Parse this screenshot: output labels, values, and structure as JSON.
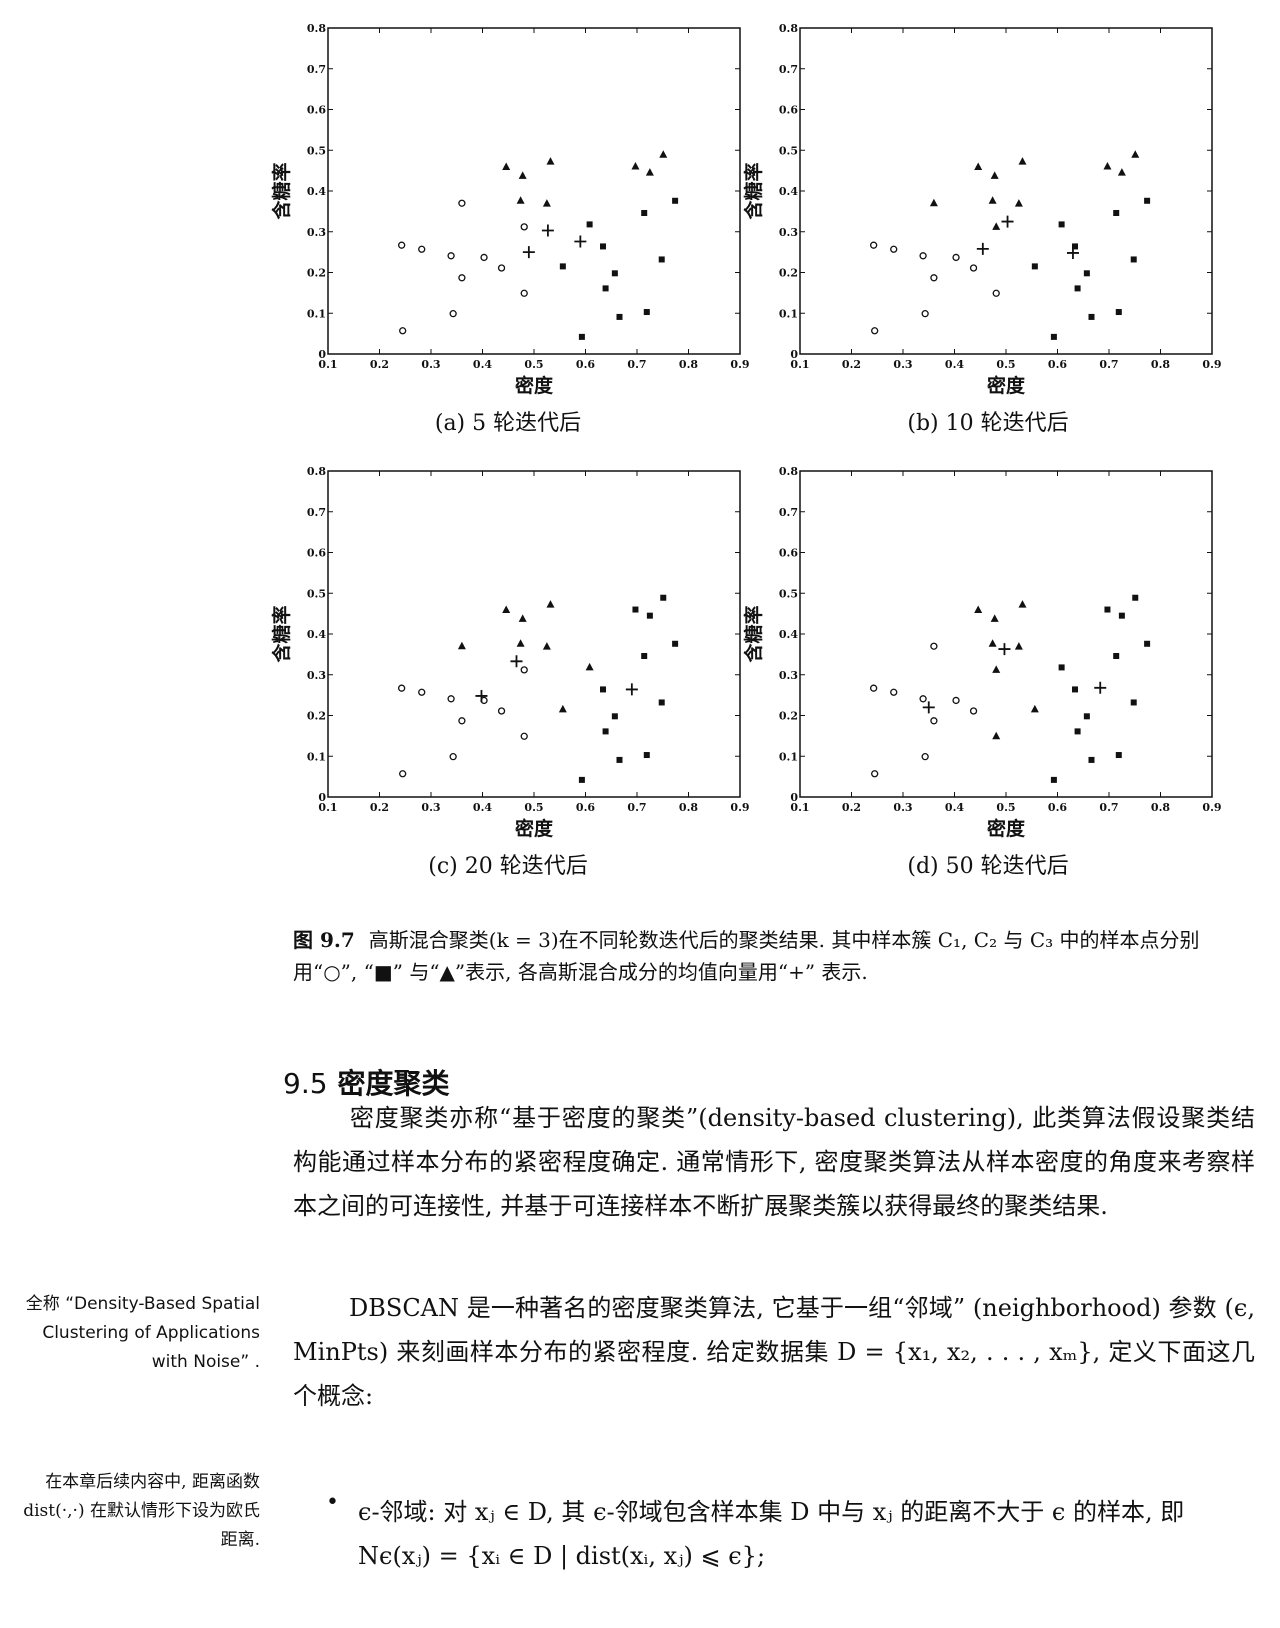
{
  "chart_data": [
    {
      "type": "scatter",
      "panel": "a",
      "subtitle": "(a) 5 轮迭代后",
      "xlabel": "密度",
      "ylabel": "含糖率",
      "xlim": [
        0.1,
        0.9
      ],
      "ylim": [
        0,
        0.8
      ],
      "xticks": [
        "0.1",
        "0.2",
        "0.3",
        "0.4",
        "0.5",
        "0.6",
        "0.7",
        "0.8",
        "0.9"
      ],
      "yticks": [
        "0",
        "0.1",
        "0.2",
        "0.3",
        "0.4",
        "0.5",
        "0.6",
        "0.7",
        "0.8"
      ],
      "series": [
        {
          "marker": "circle",
          "points": [
            [
              0.243,
              0.267
            ],
            [
              0.282,
              0.257
            ],
            [
              0.339,
              0.241
            ],
            [
              0.36,
              0.37
            ],
            [
              0.36,
              0.187
            ],
            [
              0.403,
              0.237
            ],
            [
              0.437,
              0.211
            ],
            [
              0.481,
              0.312
            ],
            [
              0.481,
              0.149
            ],
            [
              0.245,
              0.057
            ],
            [
              0.343,
              0.099
            ]
          ]
        },
        {
          "marker": "square",
          "points": [
            [
              0.556,
              0.215
            ],
            [
              0.593,
              0.042
            ],
            [
              0.608,
              0.318
            ],
            [
              0.634,
              0.264
            ],
            [
              0.639,
              0.161
            ],
            [
              0.657,
              0.198
            ],
            [
              0.666,
              0.091
            ],
            [
              0.714,
              0.346
            ],
            [
              0.719,
              0.103
            ],
            [
              0.748,
              0.232
            ],
            [
              0.774,
              0.376
            ]
          ]
        },
        {
          "marker": "triangle",
          "points": [
            [
              0.446,
              0.459
            ],
            [
              0.474,
              0.376
            ],
            [
              0.478,
              0.437
            ],
            [
              0.525,
              0.369
            ],
            [
              0.532,
              0.472
            ],
            [
              0.697,
              0.46
            ],
            [
              0.725,
              0.445
            ],
            [
              0.751,
              0.489
            ]
          ]
        },
        {
          "marker": "plus",
          "points": [
            [
              0.49,
              0.25
            ],
            [
              0.527,
              0.303
            ],
            [
              0.59,
              0.276
            ]
          ]
        }
      ]
    },
    {
      "type": "scatter",
      "panel": "b",
      "subtitle": "(b) 10 轮迭代后",
      "xlabel": "密度",
      "ylabel": "含糖率",
      "xlim": [
        0.1,
        0.9
      ],
      "ylim": [
        0,
        0.8
      ],
      "xticks": [
        "0.1",
        "0.2",
        "0.3",
        "0.4",
        "0.5",
        "0.6",
        "0.7",
        "0.8",
        "0.9"
      ],
      "yticks": [
        "0",
        "0.1",
        "0.2",
        "0.3",
        "0.4",
        "0.5",
        "0.6",
        "0.7",
        "0.8"
      ],
      "series": [
        {
          "marker": "circle",
          "points": [
            [
              0.243,
              0.267
            ],
            [
              0.282,
              0.257
            ],
            [
              0.339,
              0.241
            ],
            [
              0.36,
              0.187
            ],
            [
              0.403,
              0.237
            ],
            [
              0.437,
              0.211
            ],
            [
              0.481,
              0.149
            ],
            [
              0.245,
              0.057
            ],
            [
              0.343,
              0.099
            ]
          ]
        },
        {
          "marker": "square",
          "points": [
            [
              0.556,
              0.215
            ],
            [
              0.593,
              0.042
            ],
            [
              0.608,
              0.318
            ],
            [
              0.634,
              0.264
            ],
            [
              0.639,
              0.161
            ],
            [
              0.657,
              0.198
            ],
            [
              0.666,
              0.091
            ],
            [
              0.714,
              0.346
            ],
            [
              0.719,
              0.103
            ],
            [
              0.748,
              0.232
            ],
            [
              0.774,
              0.376
            ]
          ]
        },
        {
          "marker": "triangle",
          "points": [
            [
              0.36,
              0.37
            ],
            [
              0.446,
              0.459
            ],
            [
              0.474,
              0.376
            ],
            [
              0.478,
              0.437
            ],
            [
              0.481,
              0.312
            ],
            [
              0.525,
              0.369
            ],
            [
              0.532,
              0.472
            ],
            [
              0.697,
              0.46
            ],
            [
              0.725,
              0.445
            ],
            [
              0.751,
              0.489
            ]
          ]
        },
        {
          "marker": "plus",
          "points": [
            [
              0.455,
              0.258
            ],
            [
              0.503,
              0.325
            ],
            [
              0.63,
              0.248
            ]
          ]
        }
      ]
    },
    {
      "type": "scatter",
      "panel": "c",
      "subtitle": "(c) 20 轮迭代后",
      "xlabel": "密度",
      "ylabel": "含糖率",
      "xlim": [
        0.1,
        0.9
      ],
      "ylim": [
        0,
        0.8
      ],
      "xticks": [
        "0.1",
        "0.2",
        "0.3",
        "0.4",
        "0.5",
        "0.6",
        "0.7",
        "0.8",
        "0.9"
      ],
      "yticks": [
        "0",
        "0.1",
        "0.2",
        "0.3",
        "0.4",
        "0.5",
        "0.6",
        "0.7",
        "0.8"
      ],
      "series": [
        {
          "marker": "circle",
          "points": [
            [
              0.243,
              0.267
            ],
            [
              0.282,
              0.257
            ],
            [
              0.339,
              0.241
            ],
            [
              0.36,
              0.187
            ],
            [
              0.403,
              0.237
            ],
            [
              0.437,
              0.211
            ],
            [
              0.481,
              0.312
            ],
            [
              0.481,
              0.149
            ],
            [
              0.245,
              0.057
            ],
            [
              0.343,
              0.099
            ]
          ]
        },
        {
          "marker": "square",
          "points": [
            [
              0.593,
              0.042
            ],
            [
              0.634,
              0.264
            ],
            [
              0.639,
              0.161
            ],
            [
              0.657,
              0.198
            ],
            [
              0.666,
              0.091
            ],
            [
              0.697,
              0.46
            ],
            [
              0.714,
              0.346
            ],
            [
              0.719,
              0.103
            ],
            [
              0.725,
              0.445
            ],
            [
              0.748,
              0.232
            ],
            [
              0.751,
              0.489
            ],
            [
              0.774,
              0.376
            ]
          ]
        },
        {
          "marker": "triangle",
          "points": [
            [
              0.36,
              0.37
            ],
            [
              0.446,
              0.459
            ],
            [
              0.474,
              0.376
            ],
            [
              0.478,
              0.437
            ],
            [
              0.525,
              0.369
            ],
            [
              0.532,
              0.472
            ],
            [
              0.556,
              0.215
            ],
            [
              0.608,
              0.318
            ]
          ]
        },
        {
          "marker": "plus",
          "points": [
            [
              0.398,
              0.248
            ],
            [
              0.466,
              0.333
            ],
            [
              0.69,
              0.264
            ]
          ]
        }
      ]
    },
    {
      "type": "scatter",
      "panel": "d",
      "subtitle": "(d) 50 轮迭代后",
      "xlabel": "密度",
      "ylabel": "含糖率",
      "xlim": [
        0.1,
        0.9
      ],
      "ylim": [
        0,
        0.8
      ],
      "xticks": [
        "0.1",
        "0.2",
        "0.3",
        "0.4",
        "0.5",
        "0.6",
        "0.7",
        "0.8",
        "0.9"
      ],
      "yticks": [
        "0",
        "0.1",
        "0.2",
        "0.3",
        "0.4",
        "0.5",
        "0.6",
        "0.7",
        "0.8"
      ],
      "series": [
        {
          "marker": "circle",
          "points": [
            [
              0.243,
              0.267
            ],
            [
              0.282,
              0.257
            ],
            [
              0.339,
              0.241
            ],
            [
              0.36,
              0.37
            ],
            [
              0.36,
              0.187
            ],
            [
              0.403,
              0.237
            ],
            [
              0.437,
              0.211
            ],
            [
              0.245,
              0.057
            ],
            [
              0.343,
              0.099
            ]
          ]
        },
        {
          "marker": "square",
          "points": [
            [
              0.593,
              0.042
            ],
            [
              0.608,
              0.318
            ],
            [
              0.634,
              0.264
            ],
            [
              0.639,
              0.161
            ],
            [
              0.657,
              0.198
            ],
            [
              0.666,
              0.091
            ],
            [
              0.697,
              0.46
            ],
            [
              0.714,
              0.346
            ],
            [
              0.719,
              0.103
            ],
            [
              0.725,
              0.445
            ],
            [
              0.748,
              0.232
            ],
            [
              0.751,
              0.489
            ],
            [
              0.774,
              0.376
            ]
          ]
        },
        {
          "marker": "triangle",
          "points": [
            [
              0.446,
              0.459
            ],
            [
              0.474,
              0.376
            ],
            [
              0.478,
              0.437
            ],
            [
              0.481,
              0.312
            ],
            [
              0.481,
              0.149
            ],
            [
              0.525,
              0.369
            ],
            [
              0.532,
              0.472
            ],
            [
              0.556,
              0.215
            ]
          ]
        },
        {
          "marker": "plus",
          "points": [
            [
              0.35,
              0.22
            ],
            [
              0.497,
              0.363
            ],
            [
              0.683,
              0.268
            ]
          ]
        }
      ]
    }
  ],
  "figure_caption": {
    "number": "图 9.7",
    "text": "高斯混合聚类(k = 3)在不同轮数迭代后的聚类结果. 其中样本簇 C₁, C₂ 与 C₃ 中的样本点分别用“○”, “■” 与“▲”表示, 各高斯混合成分的均值向量用“+” 表示."
  },
  "section": {
    "number": "9.5",
    "title": "密度聚类"
  },
  "paragraphs": {
    "p1": "密度聚类亦称“基于密度的聚类”(density-based clustering), 此类算法假设聚类结构能通过样本分布的紧密程度确定. 通常情形下, 密度聚类算法从样本密度的角度来考察样本之间的可连接性, 并基于可连接样本不断扩展聚类簇以获得最终的聚类结果.",
    "p2": "DBSCAN 是一种著名的密度聚类算法, 它基于一组“邻域” (neighborhood) 参数 (ϵ, MinPts) 来刻画样本分布的紧密程度. 给定数据集 D = {x₁, x₂, . . . , xₘ}, 定义下面这几个概念:"
  },
  "bullet": {
    "symbol": "•",
    "text": "ϵ-邻域: 对 xⱼ ∈ D, 其 ϵ-邻域包含样本集 D 中与 xⱼ 的距离不大于 ϵ 的样本, 即 Nϵ(xⱼ) = {xᵢ ∈ D | dist(xᵢ, xⱼ) ⩽ ϵ};"
  },
  "margin_notes": {
    "note1": "全称 “Density-Based Spatial Clustering of Applications with Noise” .",
    "note2": "在本章后续内容中, 距离函数 dist(·,·) 在默认情形下设为欧氏距离."
  }
}
